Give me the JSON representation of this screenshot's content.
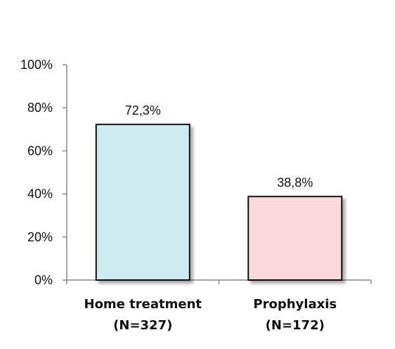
{
  "chart_data": {
    "type": "bar",
    "categories": [
      [
        "Home treatment",
        "(N=327)"
      ],
      [
        "Prophylaxis",
        "(N=172)"
      ]
    ],
    "values": [
      72.3,
      38.8
    ],
    "data_labels": [
      "72,3%",
      "38,8%"
    ],
    "bar_colors": [
      "#cdebf0",
      "#f9d8de"
    ],
    "bar_border_color": "#111111",
    "ylim": [
      0,
      100
    ],
    "yticks": [
      0,
      20,
      40,
      60,
      80,
      100
    ],
    "ytick_labels": [
      "0%",
      "20%",
      "40%",
      "60%",
      "80%",
      "100%"
    ],
    "grid": false,
    "title": "",
    "xlabel": "",
    "ylabel": ""
  }
}
